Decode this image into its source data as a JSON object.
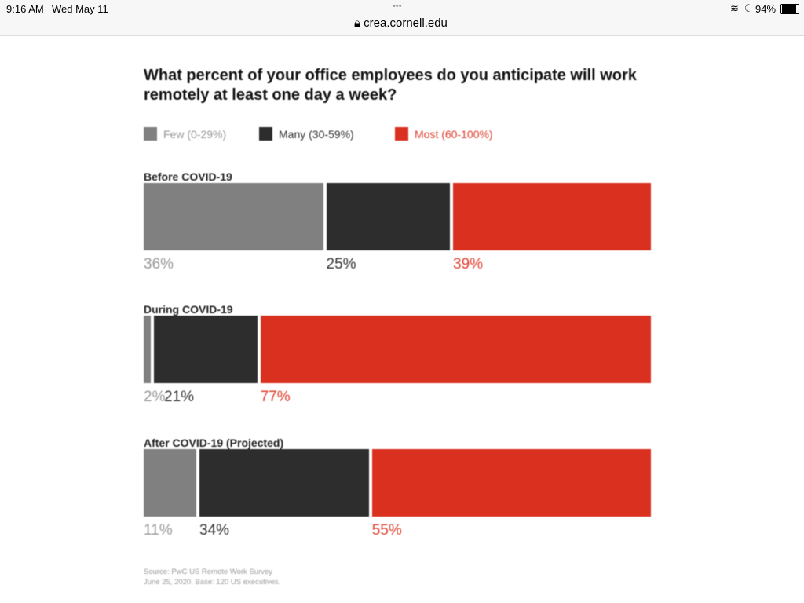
{
  "status": {
    "time": "9:16 AM",
    "date": "Wed May 11",
    "dots": "•••",
    "url": "crea.cornell.edu",
    "battery": "94%"
  },
  "chart_data": {
    "type": "bar",
    "orientation": "horizontal-stacked",
    "title": "What percent of your office employees do you anticipate will work remotely at least one day a week?",
    "legend": {
      "placement": "top-left",
      "items": [
        {
          "name": "Few (0-29%)",
          "color": "#808080",
          "text_color": "#999999"
        },
        {
          "name": "Many (30-59%)",
          "color": "#2d2d2d",
          "text_color": "#333333"
        },
        {
          "name": "Most (60-100%)",
          "color": "#d93020",
          "text_color": "#e0402f"
        }
      ]
    },
    "categories": [
      "Before COVID-19",
      "During COVID-19",
      "After COVID-19 (Projected)"
    ],
    "series": [
      {
        "name": "Few (0-29%)",
        "values": [
          36,
          2,
          11
        ]
      },
      {
        "name": "Many (30-59%)",
        "values": [
          25,
          21,
          34
        ]
      },
      {
        "name": "Most (60-100%)",
        "values": [
          39,
          77,
          55
        ]
      }
    ],
    "labels": [
      [
        "36%",
        "25%",
        "39%"
      ],
      [
        "2%",
        "21%",
        "77%"
      ],
      [
        "11%",
        "34%",
        "55%"
      ]
    ],
    "source": [
      "Source: PwC US Remote Work Survey",
      "June 25, 2020. Base: 120 US executives."
    ]
  }
}
